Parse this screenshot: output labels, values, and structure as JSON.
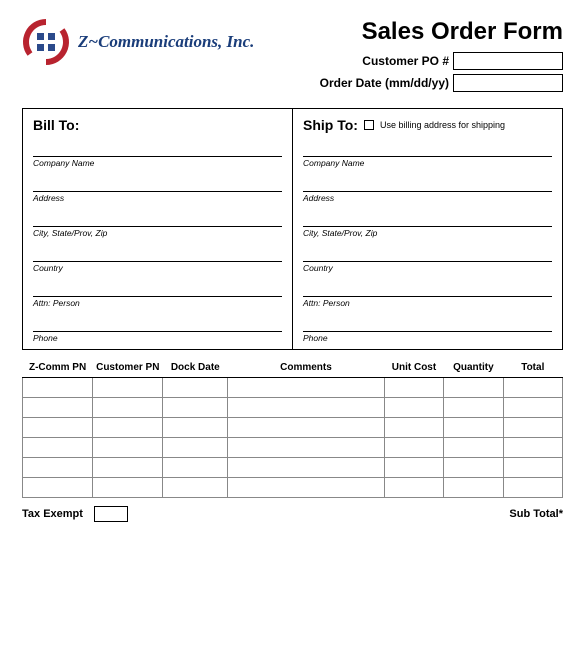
{
  "company": {
    "name": "Z~Communications, Inc."
  },
  "title": "Sales Order Form",
  "header_fields": {
    "po_label": "Customer PO #",
    "date_label": "Order Date (mm/dd/yy)"
  },
  "bill_to": {
    "heading": "Bill To:",
    "fields": [
      "Company Name",
      "Address",
      "City, State/Prov, Zip",
      "Country",
      "Attn: Person",
      "Phone"
    ]
  },
  "ship_to": {
    "heading": "Ship To:",
    "checkbox_label": "Use billing address for shipping",
    "fields": [
      "Company Name",
      "Address",
      "City, State/Prov, Zip",
      "Country",
      "Attn: Person",
      "Phone"
    ]
  },
  "table": {
    "columns": [
      "Z-Comm PN",
      "Customer PN",
      "Dock Date",
      "Comments",
      "Unit Cost",
      "Quantity",
      "Total"
    ],
    "col_widths": [
      "13%",
      "13%",
      "12%",
      "29%",
      "11%",
      "11%",
      "11%"
    ],
    "row_count": 6
  },
  "footer": {
    "tax_label": "Tax Exempt",
    "subtotal_label": "Sub Total*"
  },
  "colors": {
    "logo_red": "#b8232f",
    "logo_blue": "#2b4a8b",
    "text_blue": "#1a3d7a",
    "border": "#000000"
  }
}
